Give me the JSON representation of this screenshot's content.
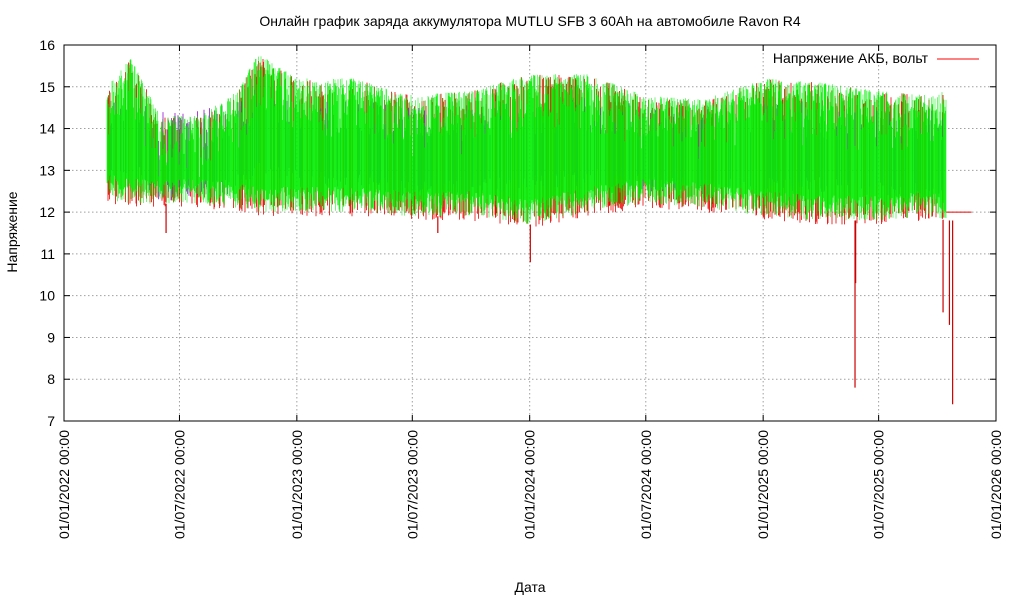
{
  "chart_data": {
    "type": "line",
    "title": "Онлайн график заряда аккумулятора MUTLU SFB 3 60Ah на автомобиле Ravon R4",
    "xlabel": "Дата",
    "ylabel": "Напряжение",
    "ylim": [
      7,
      16
    ],
    "y_ticks": [
      "7",
      "8",
      "9",
      "10",
      "11",
      "12",
      "13",
      "14",
      "15",
      "16"
    ],
    "x_ticks": [
      "01/01/2022 00:00",
      "01/07/2022 00:00",
      "01/01/2023 00:00",
      "01/07/2023 00:00",
      "01/01/2024 00:00",
      "01/07/2024 00:00",
      "01/01/2025 00:00",
      "01/07/2025 00:00",
      "01/01/2026 00:00"
    ],
    "xlim": [
      "2022-01-01",
      "2026-01-01"
    ],
    "grid": true,
    "legend_position": "top-right",
    "series": [
      {
        "name": "Напряжение АКБ, вольт",
        "color": "#9400d3",
        "envelope": [
          {
            "date": "2022-03-10",
            "min": 12.3,
            "max": 15.0
          },
          {
            "date": "2022-04-15",
            "min": 12.2,
            "max": 15.7
          },
          {
            "date": "2022-06-01",
            "min": 12.2,
            "max": 14.3
          },
          {
            "date": "2022-08-01",
            "min": 12.2,
            "max": 14.3
          },
          {
            "date": "2022-10-01",
            "min": 12.1,
            "max": 14.9
          },
          {
            "date": "2022-11-01",
            "min": 12.0,
            "max": 15.8
          },
          {
            "date": "2023-01-01",
            "min": 12.0,
            "max": 15.2
          },
          {
            "date": "2023-04-01",
            "min": 12.0,
            "max": 15.2
          },
          {
            "date": "2023-07-01",
            "min": 11.9,
            "max": 14.8
          },
          {
            "date": "2023-10-01",
            "min": 11.9,
            "max": 14.9
          },
          {
            "date": "2024-01-01",
            "min": 11.7,
            "max": 15.3
          },
          {
            "date": "2024-04-01",
            "min": 12.0,
            "max": 15.3
          },
          {
            "date": "2024-07-01",
            "min": 12.2,
            "max": 14.8
          },
          {
            "date": "2024-10-01",
            "min": 12.1,
            "max": 14.7
          },
          {
            "date": "2025-01-01",
            "min": 11.9,
            "max": 15.2
          },
          {
            "date": "2025-04-01",
            "min": 11.8,
            "max": 15.1
          },
          {
            "date": "2025-07-01",
            "min": 11.8,
            "max": 14.9
          },
          {
            "date": "2025-09-15",
            "min": 11.9,
            "max": 14.8
          },
          {
            "date": "2025-10-15",
            "min": 11.8,
            "max": 14.9
          }
        ],
        "dips": [
          {
            "date": "2022-06-10",
            "value": 11.5
          },
          {
            "date": "2023-08-10",
            "value": 11.5
          },
          {
            "date": "2024-01-02",
            "value": 10.8
          },
          {
            "date": "2025-05-25",
            "value": 7.8
          },
          {
            "date": "2025-05-26",
            "value": 10.3
          },
          {
            "date": "2025-10-10",
            "value": 9.6
          },
          {
            "date": "2025-10-20",
            "value": 9.3
          },
          {
            "date": "2025-10-25",
            "value": 7.4
          }
        ],
        "final_value": {
          "date": "2025-11-05",
          "value": 12.0
        }
      }
    ]
  }
}
